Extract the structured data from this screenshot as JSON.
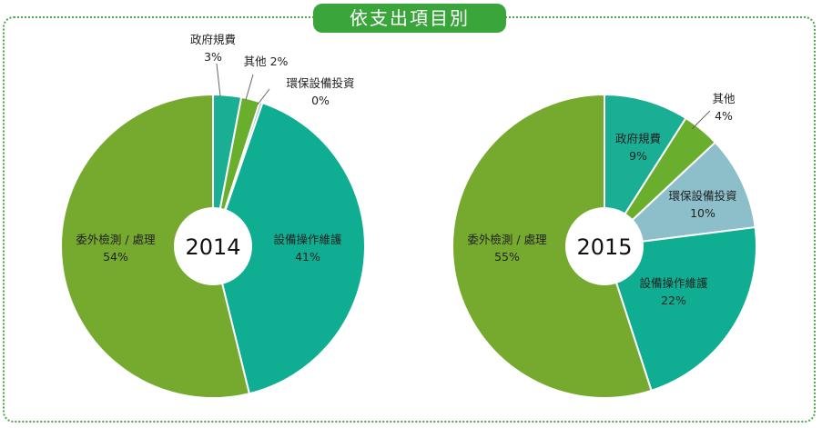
{
  "title": "依支出項目別",
  "colors": {
    "outsourced": "#76aa2e",
    "equipment": "#0fae92",
    "government": "#1aae95",
    "other": "#6aae2e",
    "environmental": "#8dbfca",
    "frame": "#4aa84a"
  },
  "chart_data": [
    {
      "type": "pie",
      "title": "2014",
      "slices": [
        {
          "key": "government",
          "label": "政府規費",
          "value": 3,
          "value_label": "3%"
        },
        {
          "key": "other",
          "label": "其他",
          "value": 2,
          "value_label": "2%"
        },
        {
          "key": "environmental",
          "label": "環保設備投資",
          "value": 0.3,
          "value_label": "0%"
        },
        {
          "key": "equipment",
          "label": "設備操作維護",
          "value": 41,
          "value_label": "41%"
        },
        {
          "key": "outsourced",
          "label": "委外檢測 / 處理",
          "value": 54,
          "value_label": "54%"
        }
      ]
    },
    {
      "type": "pie",
      "title": "2015",
      "slices": [
        {
          "key": "government",
          "label": "政府規費",
          "value": 9,
          "value_label": "9%"
        },
        {
          "key": "other",
          "label": "其他",
          "value": 4,
          "value_label": "4%"
        },
        {
          "key": "environmental",
          "label": "環保設備投資",
          "value": 10,
          "value_label": "10%"
        },
        {
          "key": "equipment",
          "label": "設備操作維護",
          "value": 22,
          "value_label": "22%"
        },
        {
          "key": "outsourced",
          "label": "委外檢測 / 處理",
          "value": 55,
          "value_label": "55%"
        }
      ]
    }
  ]
}
